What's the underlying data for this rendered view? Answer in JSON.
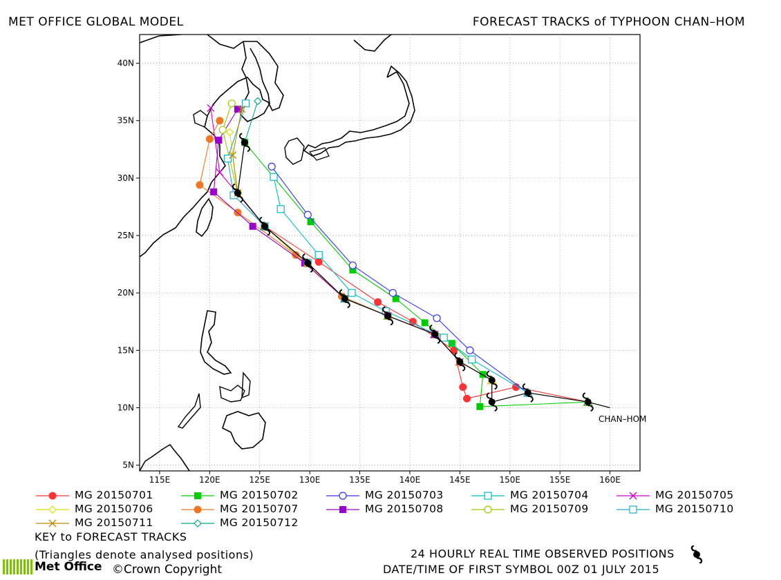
{
  "header": {
    "left_title": "MET OFFICE GLOBAL MODEL",
    "right_title": "FORECAST TRACKS of TYPHOON CHAN–HOM"
  },
  "map": {
    "lon_range": [
      113,
      163
    ],
    "lat_range": [
      4.5,
      42.5
    ],
    "x_ticks": [
      "115E",
      "120E",
      "125E",
      "130E",
      "135E",
      "140E",
      "145E",
      "150E",
      "155E",
      "160E"
    ],
    "y_ticks": [
      "5N",
      "10N",
      "15N",
      "20N",
      "25N",
      "30N",
      "35N",
      "40N"
    ],
    "storm_label": "CHAN–HOM",
    "grid": "dotted",
    "coastline_color": "#000000"
  },
  "observed_positions": [
    [
      157.8,
      10.5
    ],
    [
      151.8,
      11.3
    ],
    [
      148.2,
      10.5
    ],
    [
      148.2,
      12.4
    ],
    [
      145.0,
      14.0
    ],
    [
      142.5,
      16.4
    ],
    [
      137.8,
      18.0
    ],
    [
      133.5,
      19.5
    ],
    [
      129.8,
      22.6
    ],
    [
      125.5,
      25.8
    ],
    [
      122.8,
      28.7
    ],
    [
      123.5,
      33.1
    ]
  ],
  "tracks": [
    {
      "name": "MG 20150701",
      "color": "#ff3333",
      "marker": "circle-filled",
      "points": [
        [
          157.8,
          10.5
        ],
        [
          150.6,
          11.8
        ],
        [
          145.7,
          10.8
        ],
        [
          145.3,
          11.8
        ],
        [
          144.4,
          15.0
        ],
        [
          140.3,
          17.5
        ],
        [
          136.8,
          19.2
        ],
        [
          130.9,
          22.7
        ],
        [
          125.5,
          25.8
        ]
      ]
    },
    {
      "name": "MG 20150702",
      "color": "#00cc00",
      "marker": "square-filled",
      "points": [
        [
          157.8,
          10.5
        ],
        [
          147.0,
          10.1
        ],
        [
          147.3,
          12.9
        ],
        [
          144.2,
          15.6
        ],
        [
          141.5,
          17.4
        ],
        [
          138.6,
          19.5
        ],
        [
          134.3,
          22.0
        ],
        [
          130.1,
          26.2
        ],
        [
          123.5,
          33.1
        ]
      ]
    },
    {
      "name": "MG 20150703",
      "color": "#3333ff",
      "marker": "circle-open",
      "points": [
        [
          151.8,
          11.3
        ],
        [
          146.0,
          15.0
        ],
        [
          142.7,
          17.8
        ],
        [
          138.3,
          20.0
        ],
        [
          134.3,
          22.4
        ],
        [
          129.8,
          26.8
        ],
        [
          126.2,
          31.0
        ]
      ]
    },
    {
      "name": "MG 20150704",
      "color": "#00bbcc",
      "marker": "square-open",
      "points": [
        [
          151.8,
          11.3
        ],
        [
          146.2,
          14.2
        ],
        [
          143.4,
          16.1
        ],
        [
          137.6,
          18.4
        ],
        [
          134.2,
          20.0
        ],
        [
          130.9,
          23.3
        ],
        [
          127.1,
          27.3
        ],
        [
          126.4,
          30.1
        ]
      ]
    },
    {
      "name": "MG 20150705",
      "color": "#cc00cc",
      "marker": "x",
      "points": [
        [
          148.2,
          12.4
        ],
        [
          145.0,
          14.0
        ],
        [
          142.5,
          16.4
        ],
        [
          137.8,
          18.0
        ],
        [
          133.5,
          19.5
        ],
        [
          125.5,
          25.8
        ],
        [
          121.0,
          30.5
        ],
        [
          120.1,
          36.1
        ]
      ]
    },
    {
      "name": "MG 20150706",
      "color": "#dddd00",
      "marker": "diamond-open",
      "points": [
        [
          148.2,
          12.4
        ],
        [
          145.0,
          14.0
        ],
        [
          142.5,
          16.4
        ],
        [
          137.8,
          18.0
        ],
        [
          133.5,
          19.5
        ],
        [
          125.5,
          25.8
        ],
        [
          122.8,
          28.7
        ],
        [
          122.0,
          34.0
        ]
      ]
    },
    {
      "name": "MG 20150707",
      "color": "#ee7722",
      "marker": "circle-filled",
      "points": [
        [
          145.0,
          14.0
        ],
        [
          142.5,
          16.4
        ],
        [
          137.8,
          18.0
        ],
        [
          133.2,
          19.7
        ],
        [
          128.6,
          23.3
        ],
        [
          122.8,
          27.0
        ],
        [
          119.0,
          29.4
        ],
        [
          120.0,
          33.4
        ],
        [
          121.0,
          35.0
        ]
      ]
    },
    {
      "name": "MG 20150708",
      "color": "#9900cc",
      "marker": "square-filled",
      "points": [
        [
          142.5,
          16.4
        ],
        [
          137.8,
          18.0
        ],
        [
          133.5,
          19.5
        ],
        [
          129.5,
          22.6
        ],
        [
          124.3,
          25.8
        ],
        [
          120.4,
          28.8
        ],
        [
          120.9,
          33.3
        ],
        [
          122.8,
          36.0
        ]
      ]
    },
    {
      "name": "MG 20150709",
      "color": "#99cc00",
      "marker": "circle-open",
      "points": [
        [
          137.8,
          18.0
        ],
        [
          133.5,
          19.5
        ],
        [
          129.8,
          22.6
        ],
        [
          125.5,
          25.8
        ],
        [
          122.8,
          28.7
        ],
        [
          121.3,
          34.2
        ],
        [
          122.2,
          36.5
        ]
      ]
    },
    {
      "name": "MG 20150710",
      "color": "#22aacc",
      "marker": "square-open",
      "points": [
        [
          133.5,
          19.5
        ],
        [
          129.8,
          22.6
        ],
        [
          125.5,
          25.8
        ],
        [
          122.4,
          28.5
        ],
        [
          121.8,
          31.7
        ],
        [
          123.6,
          36.5
        ]
      ]
    },
    {
      "name": "MG 20150711",
      "color": "#bb8800",
      "marker": "x",
      "points": [
        [
          129.8,
          22.6
        ],
        [
          125.5,
          25.8
        ],
        [
          122.8,
          28.7
        ],
        [
          122.3,
          32.0
        ],
        [
          123.2,
          36.0
        ]
      ]
    },
    {
      "name": "MG 20150712",
      "color": "#00aa88",
      "marker": "diamond-open",
      "points": [
        [
          125.5,
          25.8
        ],
        [
          122.8,
          28.7
        ],
        [
          123.5,
          33.1
        ],
        [
          124.8,
          36.7
        ]
      ]
    }
  ],
  "legend": {
    "items": [
      "MG 20150701",
      "MG 20150702",
      "MG 20150703",
      "MG 20150704",
      "MG 20150705",
      "MG 20150706",
      "MG 20150707",
      "MG 20150708",
      "MG 20150709",
      "MG 20150710",
      "MG 20150711",
      "MG 20150712"
    ],
    "key_title": "KEY to FORECAST TRACKS",
    "key_note": "(Triangles denote analysed positions)"
  },
  "footer": {
    "observed_label": "24 HOURLY REAL TIME OBSERVED POSITIONS",
    "date_label": "DATE/TIME OF FIRST SYMBOL 00Z 01 JULY 2015",
    "logo_text": "Met Office",
    "copyright": "©Crown Copyright"
  }
}
